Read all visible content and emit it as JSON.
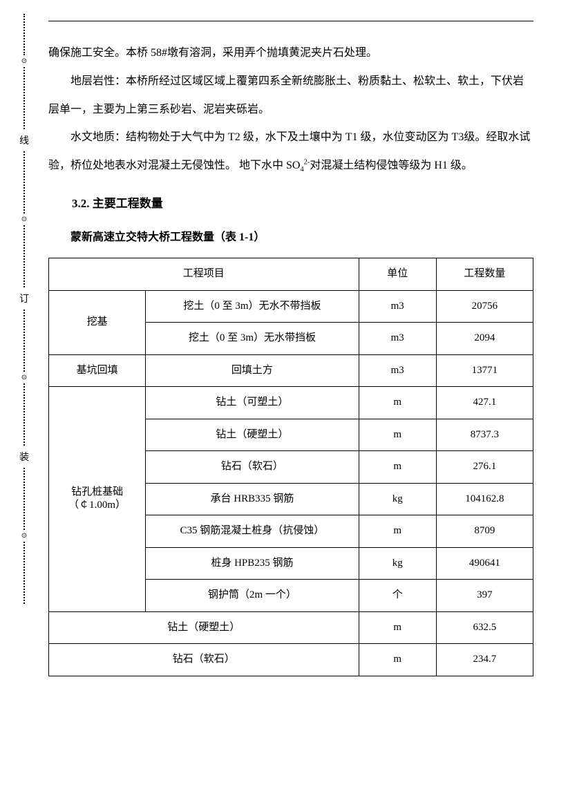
{
  "binding_labels": {
    "top": "线",
    "mid": "订",
    "bot": "装"
  },
  "paragraphs": {
    "p1": "确保施工安全。本桥 58#墩有溶洞，采用弄个抛填黄泥夹片石处理。",
    "p2": "地层岩性：本桥所经过区域区域上覆第四系全新统膨胀土、粉质黏土、松软土、软土，下伏岩层单一，主要为上第三系砂岩、泥岩夹砾岩。",
    "p3_a": "水文地质：结构物处于大气中为 T2 级，水下及土壤中为 T1 级，水位变动区为 T3级。经取水试验，桥位处地表水对混凝土无侵蚀性。 地下水中 SO",
    "p3_sub": "4",
    "p3_sup": "2-",
    "p3_b": "对混凝土结构侵蚀等级为 H1 级。"
  },
  "heading": "3.2. 主要工程数量",
  "caption": "蒙新高速立交特大桥工程数量（表 1-1）",
  "table": {
    "headers": {
      "project": "工程项目",
      "unit": "单位",
      "qty": "工程数量"
    },
    "groups": [
      {
        "label": "挖基",
        "label_rowspan": 2,
        "rows": [
          {
            "item": "挖土（0 至 3m）无水不带挡板",
            "unit": "m3",
            "qty": "20756"
          },
          {
            "item": "挖土（0 至 3m）无水带挡板",
            "unit": "m3",
            "qty": "2094"
          }
        ]
      },
      {
        "label": "基坑回填",
        "label_rowspan": 1,
        "rows": [
          {
            "item": "回填土方",
            "unit": "m3",
            "qty": "13771"
          }
        ]
      },
      {
        "label": "钻孔桩基础\n（￠1.00m）",
        "label_rowspan": 7,
        "rows": [
          {
            "item": "钻土（可塑土）",
            "unit": "m",
            "qty": "427.1"
          },
          {
            "item": "钻土（硬塑土）",
            "unit": "m",
            "qty": "8737.3"
          },
          {
            "item": "钻石（软石）",
            "unit": "m",
            "qty": "276.1"
          },
          {
            "item": "承台 HRB335 钢筋",
            "unit": "kg",
            "qty": "104162.8"
          },
          {
            "item": "C35 钢筋混凝土桩身（抗侵蚀）",
            "unit": "m",
            "qty": "8709"
          },
          {
            "item": "桩身 HPB235 钢筋",
            "unit": "kg",
            "qty": "490641"
          },
          {
            "item": "钢护筒（2m 一个）",
            "unit": "个",
            "qty": "397"
          }
        ]
      },
      {
        "label": null,
        "label_rowspan": 0,
        "span_proj": true,
        "rows": [
          {
            "item": "钻土（硬塑土）",
            "unit": "m",
            "qty": "632.5"
          },
          {
            "item": "钻石（软石）",
            "unit": "m",
            "qty": "234.7"
          }
        ]
      }
    ]
  }
}
